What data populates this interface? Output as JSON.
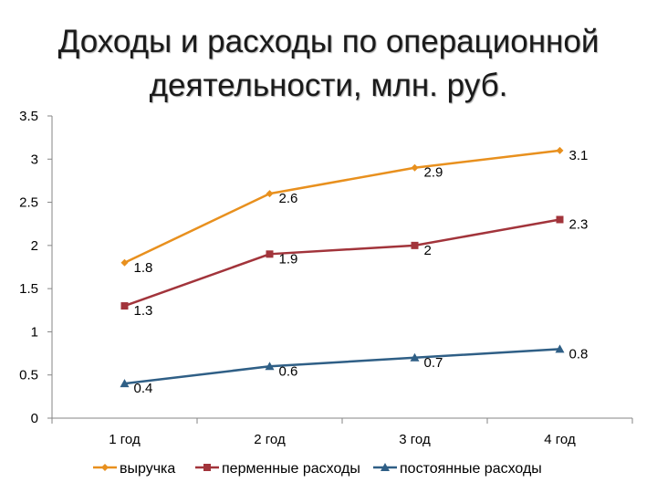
{
  "title_lines": [
    "Доходы и расходы по операционной",
    "деятельности, млн. руб."
  ],
  "chart_data": {
    "type": "line",
    "categories": [
      "1 год",
      "2 год",
      "3 год",
      "4 год"
    ],
    "ylim": [
      0,
      3.5
    ],
    "yticks": [
      "0",
      "0.5",
      "1",
      "1.5",
      "2",
      "2.5",
      "3",
      "3.5"
    ],
    "grid": false,
    "legend_position": "bottom",
    "series": [
      {
        "name": "выручка",
        "values": [
          1.8,
          2.6,
          2.9,
          3.1
        ],
        "labels": [
          "1.8",
          "2.6",
          "2.9",
          "3.1"
        ],
        "color": "#E8901E",
        "marker": "diamond"
      },
      {
        "name": "перменные расходы",
        "values": [
          1.3,
          1.9,
          2,
          2.3
        ],
        "labels": [
          "1.3",
          "1.9",
          "2",
          "2.3"
        ],
        "color": "#A2343B",
        "marker": "square"
      },
      {
        "name": "постоянные расходы",
        "values": [
          0.4,
          0.6,
          0.7,
          0.8
        ],
        "labels": [
          "0.4",
          "0.6",
          "0.7",
          "0.8"
        ],
        "color": "#2F5F86",
        "marker": "triangle"
      }
    ]
  }
}
